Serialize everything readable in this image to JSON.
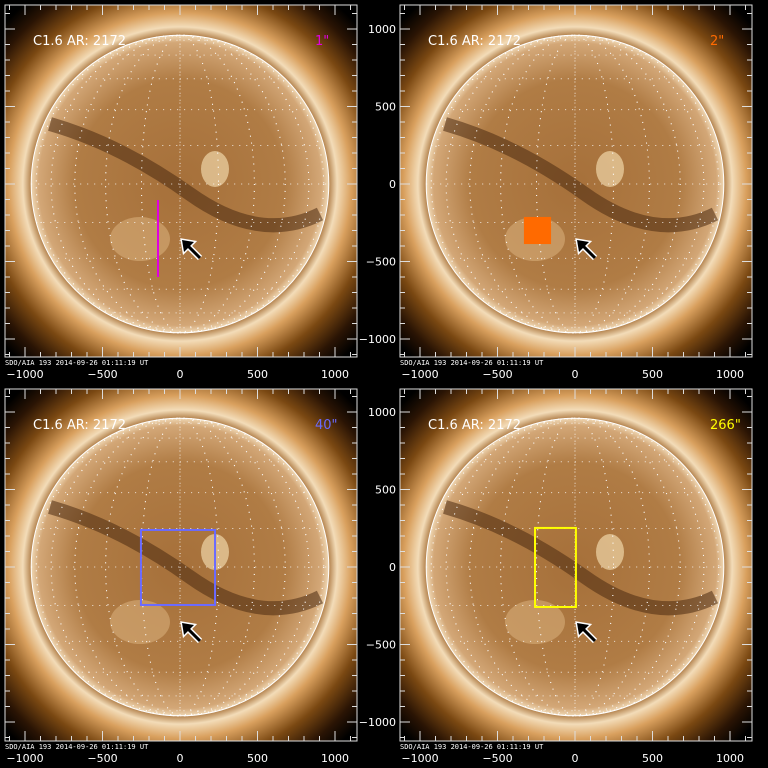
{
  "figure": {
    "footer": "SDO/AIA 193  2014-09-26 01:11:19 UT",
    "axis_ticks": [
      -1000,
      -500,
      0,
      500,
      1000
    ],
    "axis_range_arcsec": [
      -1130,
      1130
    ],
    "solar_radius_arcsec": 960,
    "arrow_tip_arcsec": [
      13,
      -361
    ],
    "panels": [
      {
        "title": "C1.6 AR: 2172",
        "tag": "1\"",
        "tag_color": "#e000e0",
        "marker": {
          "type": "line",
          "x": [
            -142,
            -142
          ],
          "y": [
            -103,
            -600
          ],
          "color": "#e000e0"
        }
      },
      {
        "title": "C1.6 AR: 2172",
        "tag": "2\"",
        "tag_color": "#ff6a00",
        "marker": {
          "type": "filled-box",
          "x": [
            -323,
            -161
          ],
          "y": [
            -219,
            -381
          ],
          "color": "#ff6a00"
        }
      },
      {
        "title": "C1.6 AR: 2172",
        "tag": "40\"",
        "tag_color": "#6a6aff",
        "marker": {
          "type": "box",
          "x": [
            -252,
            226
          ],
          "y": [
            239,
            -245
          ],
          "color": "#6a6aff"
        }
      },
      {
        "title": "C1.6 AR: 2172",
        "tag": "266\"",
        "tag_color": "#ffff00",
        "marker": {
          "type": "box",
          "x": [
            -258,
            6
          ],
          "y": [
            252,
            -258
          ],
          "color": "#ffff00"
        }
      }
    ]
  }
}
